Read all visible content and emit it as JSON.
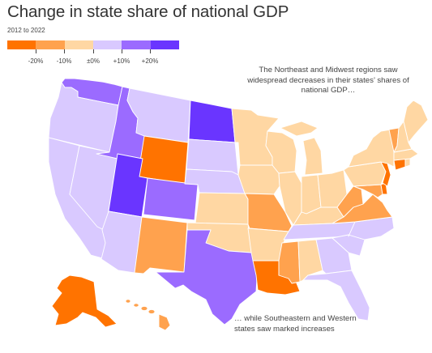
{
  "title": "Change in state share of national GDP",
  "subtitle": "2012 to 2022",
  "legend": {
    "colors": [
      "#ff7300",
      "#ffa24e",
      "#ffd7a3",
      "#d9c9ff",
      "#9b6bff",
      "#6a35ff"
    ],
    "ticks": [
      "-20%",
      "-10%",
      "±0%",
      "+10%",
      "+20%"
    ]
  },
  "annotations": {
    "northeast": "The Northeast and Midwest regions saw widespread decreases in their states’ shares of national GDP…",
    "south_west": "… while Southeastern and Western states saw marked increases"
  },
  "states": {
    "WA": "#9b6bff",
    "OR": "#d9c9ff",
    "CA": "#d9c9ff",
    "NV": "#d9c9ff",
    "ID": "#9b6bff",
    "MT": "#d9c9ff",
    "WY": "#ff7300",
    "UT": "#6a35ff",
    "AZ": "#d9c9ff",
    "CO": "#9b6bff",
    "NM": "#ffa24e",
    "ND": "#6a35ff",
    "SD": "#d9c9ff",
    "NE": "#d9c9ff",
    "KS": "#ffd7a3",
    "OK": "#ffd7a3",
    "TX": "#9b6bff",
    "MN": "#ffd7a3",
    "IA": "#ffd7a3",
    "MO": "#ffa24e",
    "AR": "#ffd7a3",
    "LA": "#ff7300",
    "WI": "#ffd7a3",
    "IL": "#ffd7a3",
    "MI": "#ffd7a3",
    "IN": "#ffd7a3",
    "OH": "#ffd7a3",
    "KY": "#ffd7a3",
    "TN": "#d9c9ff",
    "MS": "#ffa24e",
    "AL": "#ffd7a3",
    "GA": "#d9c9ff",
    "FL": "#d9c9ff",
    "SC": "#d9c9ff",
    "NC": "#d9c9ff",
    "VA": "#ffa24e",
    "WV": "#ffa24e",
    "MD": "#ffa24e",
    "DE": "#ff7300",
    "NJ": "#ff7300",
    "PA": "#ffd7a3",
    "NY": "#ffd7a3",
    "CT": "#ff7300",
    "RI": "#ffd7a3",
    "MA": "#ffd7a3",
    "VT": "#ffa24e",
    "NH": "#ffd7a3",
    "ME": "#ffd7a3",
    "AK": "#ff7300",
    "HI": "#ffa24e"
  }
}
